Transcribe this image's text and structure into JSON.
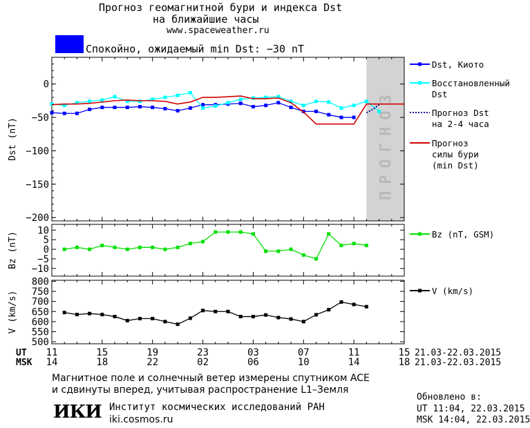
{
  "header": {
    "title_line1": "Прогноз геомагнитной бури и индекса Dst",
    "title_line2": "на ближайшие часы",
    "website": "www.spaceweather.ru",
    "status_text": "Спокойно, ожидаемый min Dst: −30 nT",
    "status_color": "#0000ff"
  },
  "forecast_band_label": "ПРОГНОЗ",
  "x_axis": {
    "ut_label": "UT",
    "msk_label": "MSK",
    "ut_ticks": [
      "11",
      "15",
      "19",
      "23",
      "03",
      "07",
      "11",
      "15"
    ],
    "msk_ticks": [
      "14",
      "18",
      "22",
      "02",
      "06",
      "10",
      "14",
      "18"
    ],
    "ut_range": "21.03-22.03.2015",
    "msk_range": "21.03-22.03.2015"
  },
  "chart_data": [
    {
      "type": "line",
      "ylabel": "Dst (nT)",
      "ylim": [
        -205,
        40
      ],
      "yticks": [
        "0",
        "−50",
        "−100",
        "−150",
        "−200"
      ],
      "xlim": [
        11,
        39
      ],
      "forecast_region": [
        36,
        39
      ],
      "series": [
        {
          "name": "Dst, Киото",
          "color": "#0000ff",
          "marker": "square",
          "x": [
            11,
            12,
            13,
            14,
            15,
            16,
            17,
            18,
            19,
            20,
            21,
            22,
            23,
            24,
            25,
            26,
            27,
            28,
            29,
            30,
            31,
            32,
            33,
            34,
            35
          ],
          "values": [
            -43,
            -44,
            -44,
            -38,
            -35,
            -35,
            -35,
            -34,
            -35,
            -37,
            -40,
            -36,
            -31,
            -31,
            -30,
            -29,
            -34,
            -32,
            -28,
            -35,
            -41,
            -41,
            -46,
            -50,
            -50
          ]
        },
        {
          "name": "Восстановленный Dst",
          "color": "#00ffff",
          "marker": "square",
          "x": [
            11,
            12,
            13,
            14,
            15,
            16,
            17,
            18,
            19,
            20,
            21,
            22,
            23,
            24,
            25,
            26,
            27,
            28,
            29,
            30,
            31,
            32,
            33,
            34,
            35,
            36,
            37
          ],
          "values": [
            -30,
            -32,
            -28,
            -26,
            -24,
            -19,
            -26,
            -26,
            -23,
            -20,
            -17,
            -13,
            -36,
            -33,
            -28,
            -23,
            -21,
            -20,
            -19,
            -26,
            -32,
            -26,
            -27,
            -36,
            -32,
            -26,
            -41
          ]
        },
        {
          "name": "Прогноз Dst на 2-4 часа",
          "color": "#0000a0",
          "style": "dotted",
          "x": [
            36,
            36.5,
            37
          ],
          "values": [
            -43,
            -38,
            -31
          ]
        },
        {
          "name": "Прогноз силы бури (min Dst)",
          "color": "#d00000",
          "style": "solid",
          "x": [
            11,
            12,
            13,
            14,
            15,
            16,
            17,
            18,
            19,
            20,
            21,
            22,
            23,
            24,
            25,
            26,
            27,
            28,
            29,
            30,
            31,
            32,
            33,
            34,
            35,
            36,
            37,
            38,
            39
          ],
          "values": [
            -31,
            -30,
            -30,
            -29,
            -27,
            -25,
            -24,
            -25,
            -25,
            -26,
            -30,
            -27,
            -20,
            -20,
            -19,
            -18,
            -22,
            -22,
            -21,
            -28,
            -42,
            -60,
            -60,
            -60,
            -60,
            -30,
            -30,
            -30,
            -30
          ]
        }
      ]
    },
    {
      "type": "line",
      "ylabel": "Bz (nT)",
      "ylim": [
        -14,
        13
      ],
      "yticks": [
        "10",
        "5",
        "0",
        "−5",
        "−10"
      ],
      "xlim": [
        11,
        39
      ],
      "series": [
        {
          "name": "Bz (nT, GSM)",
          "color": "#00e000",
          "marker": "square",
          "x": [
            12,
            13,
            14,
            15,
            16,
            17,
            18,
            19,
            20,
            21,
            22,
            23,
            24,
            25,
            26,
            27,
            28,
            29,
            30,
            31,
            32,
            33,
            34,
            35,
            36
          ],
          "values": [
            0,
            1,
            0,
            2,
            1,
            0,
            1,
            1,
            0,
            1,
            3,
            4,
            9,
            9,
            9,
            8,
            -1,
            -1,
            0,
            -3,
            -5,
            8,
            2,
            3,
            2
          ]
        }
      ]
    },
    {
      "type": "line",
      "ylabel": "V (km/s)",
      "ylim": [
        490,
        805
      ],
      "yticks": [
        "800",
        "750",
        "700",
        "650",
        "600",
        "550",
        "500"
      ],
      "xlim": [
        11,
        39
      ],
      "series": [
        {
          "name": "V (km/s)",
          "color": "#000000",
          "marker": "square",
          "x": [
            12,
            13,
            14,
            15,
            16,
            17,
            18,
            19,
            20,
            21,
            22,
            23,
            24,
            25,
            26,
            27,
            28,
            29,
            30,
            31,
            32,
            33,
            34,
            35,
            36
          ],
          "values": [
            645,
            635,
            640,
            635,
            625,
            605,
            615,
            615,
            600,
            587,
            617,
            655,
            650,
            650,
            625,
            625,
            633,
            620,
            613,
            600,
            634,
            659,
            697,
            685,
            674
          ]
        }
      ]
    }
  ],
  "footer": {
    "line1": "Магнитное поле и солнечный ветер измерены спутником ACE",
    "line2": "и сдвинуты вперед, учитывая распространение L1–Земля",
    "logo_text": "ИКИ",
    "institute": "Институт космических исследований РАН",
    "institute_site": "iki.cosmos.ru",
    "updated_label": "Обновлено в:",
    "updated_ut": "UT   11:04, 22.03.2015",
    "updated_msk": "MSK 14:04, 22.03.2015"
  }
}
